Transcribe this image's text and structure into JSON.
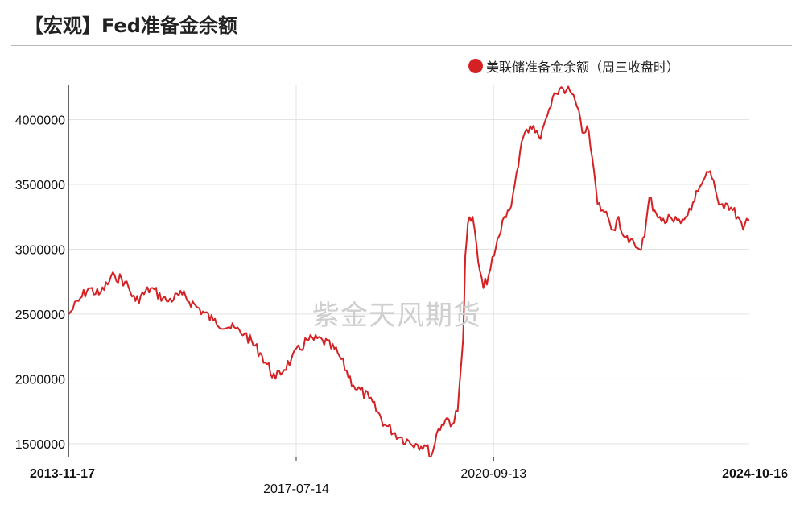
{
  "title": "【宏观】Fed准备金余额",
  "watermark": "紫金天风期货",
  "colors": {
    "series": "#d42124",
    "grid": "#e3e3e3",
    "axis": "#333333"
  },
  "chart_data": {
    "type": "line",
    "title": "【宏观】Fed准备金余额",
    "xlabel": "",
    "ylabel": "",
    "ylim": [
      1400000,
      4270000
    ],
    "xlim": [
      "2013-11-17",
      "2024-10-16"
    ],
    "grid": true,
    "legend_position": "top-right",
    "yticks": [
      1500000,
      2000000,
      2500000,
      3000000,
      3500000,
      4000000
    ],
    "ytick_labels": [
      "1500000",
      "2000000",
      "2500000",
      "3000000",
      "3500000",
      "4000000"
    ],
    "xticks": [
      {
        "label": "2013-11-17",
        "date": "2013-11-17",
        "bold": true,
        "row": 1
      },
      {
        "label": "2017-07-14",
        "date": "2017-07-14",
        "bold": false,
        "row": 2
      },
      {
        "label": "2020-09-13",
        "date": "2020-09-13",
        "bold": false,
        "row": 1
      },
      {
        "label": "2024-10-16",
        "date": "2024-10-16",
        "bold": true,
        "row": 1
      }
    ],
    "series": [
      {
        "name": "美联储准备金余额（周三收盘时）",
        "x": [
          "2013-11-20",
          "2014-01-15",
          "2014-03-15",
          "2014-05-15",
          "2014-08-15",
          "2014-10-15",
          "2014-12-15",
          "2015-03-15",
          "2015-06-15",
          "2015-09-15",
          "2015-12-15",
          "2016-03-15",
          "2016-06-15",
          "2016-09-15",
          "2016-12-15",
          "2017-03-15",
          "2017-06-15",
          "2017-09-15",
          "2017-12-15",
          "2018-03-15",
          "2018-06-15",
          "2018-09-15",
          "2018-12-15",
          "2019-03-15",
          "2019-06-15",
          "2019-08-15",
          "2019-09-11",
          "2019-09-25",
          "2019-10-15",
          "2019-11-15",
          "2019-12-15",
          "2020-01-15",
          "2020-02-15",
          "2020-03-18",
          "2020-03-31",
          "2020-04-15",
          "2020-05-13",
          "2020-06-15",
          "2020-07-15",
          "2020-08-15",
          "2020-09-16",
          "2020-10-15",
          "2020-11-15",
          "2020-12-15",
          "2021-01-15",
          "2021-02-15",
          "2021-03-15",
          "2021-04-15",
          "2021-05-15",
          "2021-06-15",
          "2021-07-15",
          "2021-08-15",
          "2021-09-15",
          "2021-10-15",
          "2021-11-15",
          "2021-12-15",
          "2022-01-15",
          "2022-02-15",
          "2022-03-15",
          "2022-04-15",
          "2022-05-15",
          "2022-06-15",
          "2022-07-15",
          "2022-08-15",
          "2022-09-15",
          "2022-10-15",
          "2022-11-15",
          "2022-12-15",
          "2023-01-15",
          "2023-02-15",
          "2023-03-15",
          "2023-04-15",
          "2023-05-15",
          "2023-06-15",
          "2023-07-15",
          "2023-08-15",
          "2023-09-15",
          "2023-10-15",
          "2023-11-15",
          "2023-12-15",
          "2024-01-15",
          "2024-02-15",
          "2024-03-15",
          "2024-04-15",
          "2024-05-15",
          "2024-06-15",
          "2024-07-15",
          "2024-08-15",
          "2024-09-15",
          "2024-10-16"
        ],
        "y": [
          2500000,
          2600000,
          2700000,
          2650000,
          2800000,
          2750000,
          2600000,
          2700000,
          2600000,
          2650000,
          2550000,
          2450000,
          2400000,
          2350000,
          2200000,
          2000000,
          2150000,
          2300000,
          2300000,
          2200000,
          1950000,
          1850000,
          1650000,
          1550000,
          1500000,
          1480000,
          1400000,
          1450000,
          1580000,
          1650000,
          1700000,
          1650000,
          1750000,
          2300000,
          2950000,
          3200000,
          3250000,
          2900000,
          2700000,
          2800000,
          2950000,
          3100000,
          3250000,
          3300000,
          3500000,
          3750000,
          3900000,
          3950000,
          3900000,
          3850000,
          4000000,
          4100000,
          4200000,
          4250000,
          4230000,
          4200000,
          4100000,
          3900000,
          3950000,
          3700000,
          3350000,
          3300000,
          3250000,
          3150000,
          3250000,
          3100000,
          3050000,
          3050000,
          3000000,
          3100000,
          3400000,
          3300000,
          3250000,
          3200000,
          3250000,
          3250000,
          3200000,
          3250000,
          3300000,
          3450000,
          3500000,
          3600000,
          3550000,
          3400000,
          3350000,
          3350000,
          3300000,
          3250000,
          3150000,
          3220000
        ]
      }
    ]
  }
}
